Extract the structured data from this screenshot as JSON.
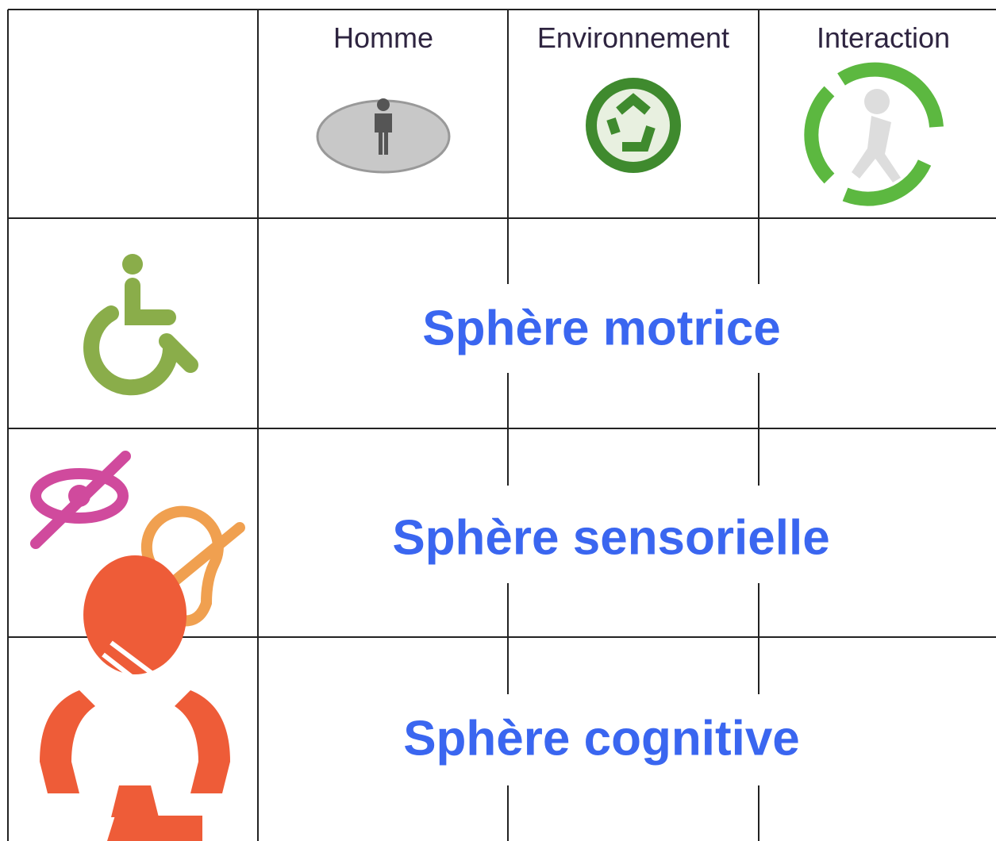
{
  "table": {
    "header": [
      "Homme",
      "Environnement",
      "Interaction"
    ],
    "rows": [
      "Sphère motrice",
      "Sphère sensorielle",
      "Sphère cognitive"
    ]
  }
}
